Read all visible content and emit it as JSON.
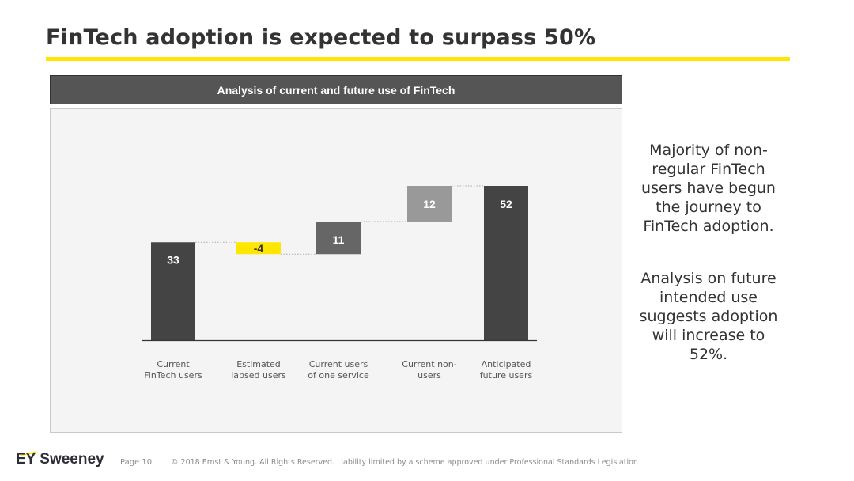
{
  "slide": {
    "title": "FinTech adoption is expected to surpass 50%",
    "accent_color": "#ffe600"
  },
  "chart_header": {
    "text": "Analysis of current and future use of FinTech"
  },
  "chart_data": {
    "type": "bar",
    "subtype": "waterfall",
    "title": "Analysis of current and future use of FinTech",
    "categories": [
      [
        "Current",
        "FinTech users"
      ],
      [
        "Estimated",
        "lapsed users"
      ],
      [
        "Current users",
        "of one service"
      ],
      [
        "Current non-",
        "users"
      ],
      [
        "Anticipated",
        "future users"
      ]
    ],
    "values": [
      33,
      -4,
      11,
      12,
      52
    ],
    "bar_kinds": [
      "total",
      "delta",
      "delta",
      "delta",
      "total"
    ],
    "data_labels": [
      "33",
      "-4",
      "11",
      "12",
      "52"
    ],
    "colors": [
      "#444444",
      "#ffe600",
      "#666666",
      "#999999",
      "#444444"
    ],
    "label_colors": [
      "#ffffff",
      "#333333",
      "#ffffff",
      "#ffffff",
      "#ffffff"
    ],
    "ylim": [
      0,
      52
    ],
    "xlabel": "",
    "ylabel": "",
    "grid": false,
    "connectors": true
  },
  "side_text": {
    "paragraph_1": "Majority of non-regular FinTech users have begun the journey to FinTech adoption.",
    "paragraph_2": "Analysis on future intended use suggests adoption will increase to 52%."
  },
  "footer": {
    "brand": "EY Sweeney",
    "page_label": "Page 10",
    "copyright": "© 2018 Ernst & Young. All Rights Reserved. Liability limited by a scheme approved under Professional Standards Legislation"
  }
}
